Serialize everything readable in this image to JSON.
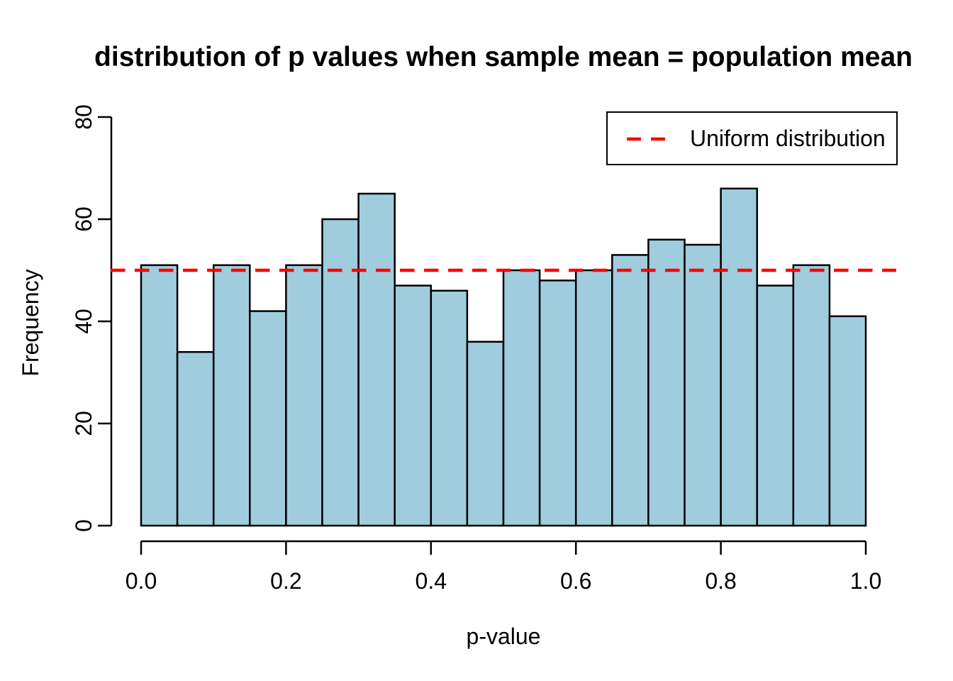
{
  "page": {
    "background": "#FFFFFF"
  },
  "chart_data": {
    "type": "bar",
    "subtype": "histogram",
    "title": "distribution of p values when sample mean = population mean",
    "xlabel": "p-value",
    "ylabel": "Frequency",
    "xlim": [
      0.0,
      1.0
    ],
    "ylim": [
      0,
      80
    ],
    "grid": false,
    "bin_width": 0.05,
    "bin_edges": [
      0.0,
      0.05,
      0.1,
      0.15,
      0.2,
      0.25,
      0.3,
      0.35,
      0.4,
      0.45,
      0.5,
      0.55,
      0.6,
      0.65,
      0.7,
      0.75,
      0.8,
      0.85,
      0.9,
      0.95,
      1.0
    ],
    "values": [
      51,
      34,
      51,
      42,
      51,
      60,
      65,
      47,
      46,
      36,
      50,
      48,
      50,
      53,
      56,
      55,
      66,
      47,
      51,
      41
    ],
    "total_count": 1000,
    "x_ticks": [
      "0.0",
      "0.2",
      "0.4",
      "0.6",
      "0.8",
      "1.0"
    ],
    "y_ticks": [
      "0",
      "20",
      "40",
      "60",
      "80"
    ],
    "bar_fill": "#A0CDDE",
    "bar_stroke": "#000000",
    "axis_color": "#000000",
    "reference_line": {
      "y": 50,
      "color": "#FC0000",
      "style": "dashed",
      "label": "Uniform distribution"
    },
    "legend": {
      "position": "top-right",
      "entries": [
        {
          "label": "Uniform distribution",
          "color": "#FC0000",
          "line_style": "dashed"
        }
      ]
    }
  }
}
